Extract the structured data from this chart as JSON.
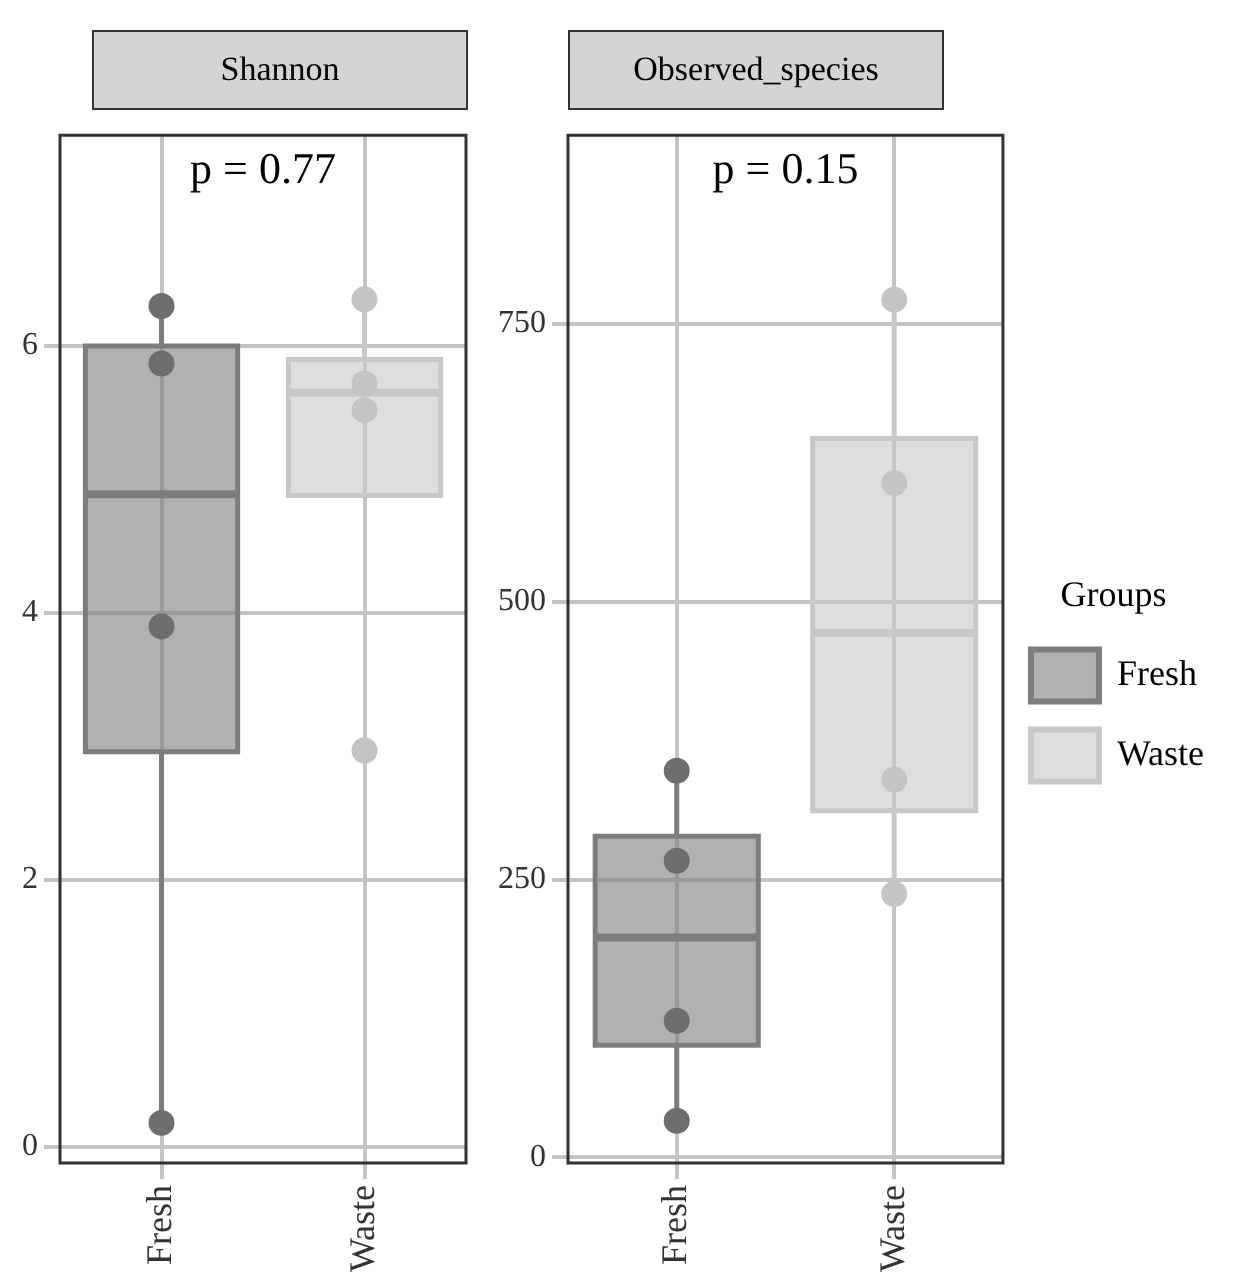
{
  "chart_data": [
    {
      "type": "box",
      "title": "Shannon",
      "categories": [
        "Fresh",
        "Waste"
      ],
      "series": [
        {
          "color": "#7d7d80",
          "boxes": [
            {
              "low": 0.18,
              "q1": 2.96,
              "median": 4.89,
              "q3": 6.0,
              "high": 6.3
            },
            null
          ]
        },
        {
          "color": "#c8c8c8",
          "boxes": [
            null,
            {
              "low": 4.88,
              "q1": 4.88,
              "median": 5.65,
              "q3": 5.9,
              "high": 6.35
            }
          ]
        },
        {
          "type": "scatter",
          "x": [
            "Fresh",
            "Fresh",
            "Fresh",
            "Fresh",
            "Waste",
            "Waste",
            "Waste",
            "Waste"
          ],
          "values": [
            5.87,
            6.3,
            3.9,
            0.18,
            6.35,
            5.72,
            5.52,
            2.97
          ],
          "colors": [
            "#6e6e70",
            "#6e6e70",
            "#6e6e70",
            "#6e6e70",
            "#c4c4c4",
            "#c4c4c4",
            "#c4c4c4",
            "#c4c4c4"
          ]
        }
      ],
      "annotations": [
        "p = 0.77"
      ],
      "ylim": [
        -0.12,
        7.58
      ],
      "yticks": [
        0,
        2,
        4,
        6
      ],
      "grid": true
    },
    {
      "type": "box",
      "title": "Observed_species",
      "categories": [
        "Fresh",
        "Waste"
      ],
      "series": [
        {
          "name": "Fresh",
          "color": "#7d7d80",
          "boxes": [
            {
              "low": 33,
              "q1": 101,
              "median": 198,
              "q3": 289,
              "high": 347
            },
            null
          ]
        },
        {
          "name": "Waste",
          "color": "#c8c8c8",
          "boxes": [
            null,
            {
              "low": 237,
              "q1": 312,
              "median": 472,
              "q3": 647,
              "high": 772
            }
          ]
        },
        {
          "type": "scatter",
          "x": [
            "Fresh",
            "Fresh",
            "Fresh",
            "Fresh",
            "Waste",
            "Waste",
            "Waste",
            "Waste"
          ],
          "values": [
            348,
            267,
            123,
            33,
            772,
            607,
            340,
            237
          ],
          "colors": [
            "#6e6e70",
            "#6e6e70",
            "#6e6e70",
            "#6e6e70",
            "#c4c4c4",
            "#c4c4c4",
            "#c4c4c4",
            "#c4c4c4"
          ]
        }
      ],
      "annotations": [
        "p = 0.15"
      ],
      "ylim": [
        -5,
        920
      ],
      "yticks": [
        0,
        250,
        500,
        750
      ],
      "grid": true,
      "legend": "right",
      "legend_title": "Groups"
    }
  ]
}
